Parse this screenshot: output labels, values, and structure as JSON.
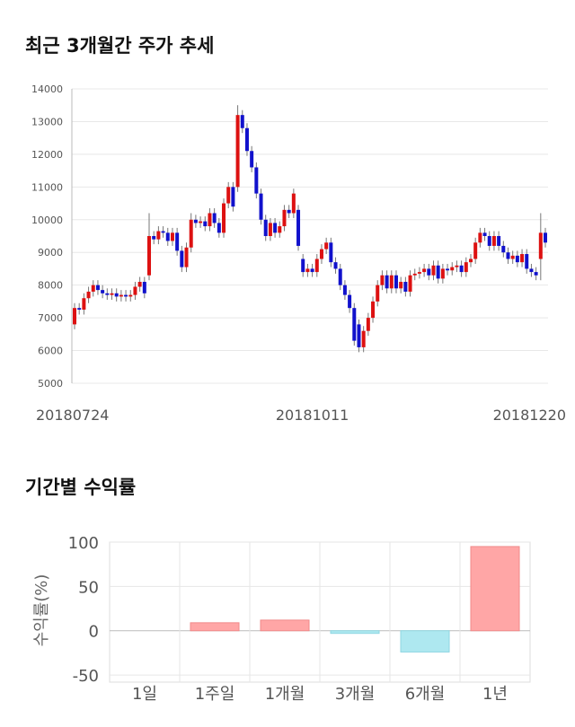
{
  "chart_data": [
    {
      "type": "candlestick",
      "title": "최근 3개월간 주가 추세",
      "categories": [
        "20180724",
        null,
        null,
        null,
        null,
        null,
        null,
        null,
        null,
        null,
        null,
        null,
        null,
        null,
        null,
        null,
        null,
        null,
        null,
        null,
        null,
        null,
        null,
        null,
        null,
        null,
        null,
        null,
        null,
        null,
        null,
        null,
        null,
        null,
        null,
        null,
        null,
        null,
        null,
        null,
        null,
        null,
        null,
        null,
        null,
        null,
        null,
        null,
        null,
        null,
        null,
        "20181011",
        null,
        null,
        null,
        null,
        null,
        null,
        null,
        null,
        null,
        null,
        null,
        null,
        null,
        null,
        null,
        null,
        null,
        null,
        null,
        null,
        null,
        null,
        null,
        null,
        null,
        null,
        null,
        null,
        null,
        null,
        null,
        null,
        null,
        null,
        null,
        null,
        null,
        null,
        null,
        null,
        null,
        null,
        null,
        null,
        null,
        null,
        null,
        null,
        null,
        "20181220"
      ],
      "open": [
        6800,
        7300,
        7250,
        7600,
        7800,
        8000,
        7850,
        7750,
        7700,
        7750,
        7650,
        7700,
        7650,
        7700,
        7950,
        8100,
        8300,
        9500,
        9400,
        9650,
        9600,
        9350,
        9600,
        9050,
        8550,
        9150,
        10000,
        9900,
        9950,
        9800,
        10200,
        9900,
        9600,
        10500,
        11000,
        11000,
        13200,
        12800,
        12100,
        11600,
        10800,
        10000,
        9500,
        9900,
        9600,
        9800,
        10300,
        10200,
        10300,
        8800,
        8400,
        8500,
        8400,
        8800,
        9100,
        9300,
        8700,
        8500,
        8000,
        7700,
        7300,
        6800,
        6100,
        6600,
        7000,
        7500,
        8000,
        8300,
        7900,
        8300,
        7900,
        8100,
        7800,
        8300,
        8350,
        8400,
        8500,
        8300,
        8600,
        8200,
        8500,
        8450,
        8550,
        8600,
        8400,
        8700,
        8800,
        9300,
        9600,
        9500,
        9200,
        9500,
        9200,
        9000,
        8800,
        8900,
        8700,
        8950,
        8500,
        8400,
        8800,
        9600
      ],
      "high": [
        7450,
        7450,
        7750,
        7950,
        8150,
        8150,
        8000,
        7900,
        7900,
        7900,
        7850,
        7850,
        7850,
        8100,
        8250,
        8250,
        10200,
        9650,
        9800,
        9800,
        9750,
        9750,
        9750,
        9200,
        9300,
        10200,
        10150,
        10100,
        10100,
        10350,
        10350,
        10050,
        10650,
        11150,
        11150,
        13500,
        13350,
        12950,
        12250,
        11750,
        10950,
        10150,
        10050,
        10050,
        9950,
        10450,
        10450,
        10950,
        10450,
        8950,
        8650,
        8650,
        8950,
        9250,
        9450,
        9450,
        8850,
        8650,
        8150,
        7850,
        7450,
        6950,
        6750,
        7150,
        7650,
        8150,
        8450,
        8450,
        8450,
        8450,
        8250,
        8250,
        8450,
        8500,
        8550,
        8650,
        8650,
        8750,
        8750,
        8650,
        8650,
        8700,
        8750,
        8750,
        8850,
        8950,
        9450,
        9750,
        9750,
        9650,
        9650,
        9650,
        9350,
        9150,
        9050,
        9050,
        9100,
        9100,
        8650,
        8550,
        10200,
        9750
      ],
      "low": [
        6650,
        7100,
        7100,
        7450,
        7650,
        7700,
        7600,
        7550,
        7550,
        7500,
        7500,
        7500,
        7500,
        7550,
        7800,
        7600,
        8150,
        9250,
        9250,
        9450,
        9200,
        9200,
        8900,
        8400,
        8400,
        9000,
        9750,
        9750,
        9650,
        9650,
        9750,
        9450,
        9450,
        10350,
        10250,
        10850,
        12650,
        11950,
        11450,
        10650,
        9850,
        9350,
        9350,
        9450,
        9450,
        9650,
        10050,
        10050,
        9050,
        8250,
        8250,
        8250,
        8250,
        8650,
        8950,
        8550,
        8350,
        7850,
        7550,
        7150,
        6150,
        5950,
        5950,
        6450,
        6850,
        7350,
        7850,
        7750,
        7750,
        7750,
        7750,
        7650,
        7650,
        8150,
        8200,
        8250,
        8150,
        8150,
        8050,
        8050,
        8300,
        8300,
        8400,
        8250,
        8250,
        8550,
        8650,
        9150,
        9350,
        9050,
        9050,
        9050,
        8850,
        8650,
        8650,
        8550,
        8550,
        8350,
        8250,
        8150,
        8150,
        9150
      ],
      "close": [
        7300,
        7250,
        7600,
        7800,
        8000,
        7850,
        7750,
        7700,
        7750,
        7650,
        7700,
        7650,
        7700,
        7950,
        8100,
        7750,
        9500,
        9400,
        9650,
        9600,
        9350,
        9600,
        9050,
        8550,
        9150,
        10000,
        9900,
        9950,
        9800,
        10200,
        9900,
        9600,
        10500,
        11000,
        10400,
        13200,
        12800,
        12100,
        11600,
        10800,
        10000,
        9500,
        9900,
        9600,
        9800,
        10300,
        10200,
        10800,
        9200,
        8400,
        8500,
        8400,
        8800,
        9100,
        9300,
        8700,
        8500,
        8000,
        7700,
        7300,
        6300,
        6100,
        6600,
        7000,
        7500,
        8000,
        8300,
        7900,
        8300,
        7900,
        8100,
        7800,
        8300,
        8350,
        8400,
        8500,
        8300,
        8600,
        8200,
        8500,
        8450,
        8550,
        8600,
        8400,
        8700,
        8800,
        9300,
        9600,
        9500,
        9200,
        9500,
        9200,
        9000,
        8800,
        8900,
        8700,
        8950,
        8500,
        8400,
        8300,
        9600,
        9300
      ],
      "up_color": "#dd1111",
      "down_color": "#1111cc",
      "ylim": [
        5000,
        14000
      ],
      "yticks": [
        5000,
        6000,
        7000,
        8000,
        9000,
        10000,
        11000,
        12000,
        13000,
        14000
      ],
      "grid": true
    },
    {
      "type": "bar",
      "title": "기간별 수익률",
      "ylabel": "수익률(%)",
      "categories": [
        "1일",
        "1주일",
        "1개월",
        "3개월",
        "6개월",
        "1년"
      ],
      "values": [
        0,
        9,
        12,
        -3,
        -24,
        95
      ],
      "pos_color": "#ffa6a6",
      "neg_color": "#aee8f0",
      "ylim": [
        -58,
        100
      ],
      "yticks": [
        -50,
        0,
        50,
        100
      ],
      "grid": true
    }
  ]
}
